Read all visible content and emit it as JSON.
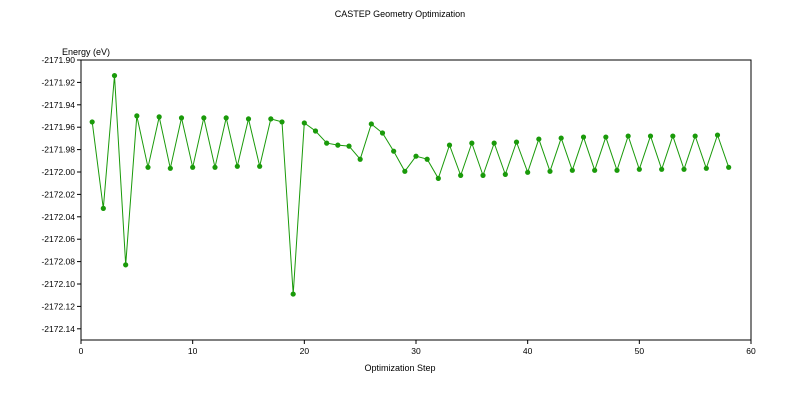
{
  "chart_data": {
    "type": "line",
    "title": "CASTEP Geometry Optimization",
    "xlabel": "Optimization Step",
    "ylabel": "Energy (eV)",
    "xlim": [
      0,
      60
    ],
    "ylim": [
      -2172.15,
      -2171.9
    ],
    "x_ticks": [
      0,
      10,
      20,
      30,
      40,
      50,
      60
    ],
    "y_ticks": [
      -2171.9,
      -2171.92,
      -2171.94,
      -2171.96,
      -2171.98,
      -2172.0,
      -2172.02,
      -2172.04,
      -2172.06,
      -2172.08,
      -2172.1,
      -2172.12,
      -2172.14
    ],
    "grid": false,
    "series_color": "#1a9a0a",
    "series": [
      {
        "x": [
          1,
          2,
          3,
          4,
          5,
          6,
          7,
          8,
          9,
          10,
          11,
          12,
          13,
          14,
          15,
          16,
          17,
          18,
          19,
          20,
          21,
          22,
          23,
          24,
          25,
          26,
          27,
          28,
          29,
          30,
          31,
          32,
          33,
          34,
          35,
          36,
          37,
          38,
          39,
          40,
          41,
          42,
          43,
          44,
          45,
          46,
          47,
          48,
          49,
          50,
          51,
          52,
          53,
          54,
          55,
          56,
          57,
          58
        ],
        "values": [
          -2171.9553,
          -2172.0325,
          -2171.9139,
          -2172.0829,
          -2171.9499,
          -2171.9958,
          -2171.9508,
          -2171.9967,
          -2171.9517,
          -2171.9958,
          -2171.9517,
          -2171.9958,
          -2171.9517,
          -2171.9949,
          -2171.9526,
          -2171.9949,
          -2171.9526,
          -2171.9553,
          -2172.109,
          -2171.9562,
          -2171.9634,
          -2171.9742,
          -2171.976,
          -2171.9769,
          -2171.9886,
          -2171.9571,
          -2171.9652,
          -2171.9814,
          -2171.9994,
          -2171.9859,
          -2171.9886,
          -2172.0057,
          -2171.976,
          -2172.003,
          -2171.9742,
          -2172.003,
          -2171.9742,
          -2172.0021,
          -2171.9733,
          -2172.0003,
          -2171.9706,
          -2171.9994,
          -2171.9697,
          -2171.9985,
          -2171.9688,
          -2171.9985,
          -2171.9688,
          -2171.9985,
          -2171.9679,
          -2171.9976,
          -2171.9679,
          -2171.9976,
          -2171.9679,
          -2171.9976,
          -2171.9679,
          -2171.9967,
          -2171.967,
          -2171.9958
        ]
      }
    ]
  }
}
